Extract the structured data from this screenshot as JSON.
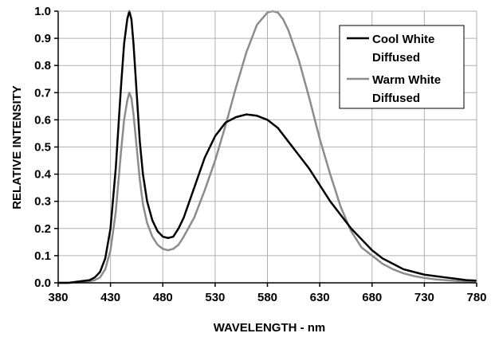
{
  "chart_data": {
    "type": "line",
    "title": "",
    "xlabel": "WAVELENGTH - nm",
    "ylabel": "RELATIVE INTENSITY",
    "xlim": [
      380,
      780
    ],
    "ylim": [
      0,
      1.0
    ],
    "x_ticks": [
      "380",
      "430",
      "480",
      "530",
      "580",
      "630",
      "680",
      "730",
      "780"
    ],
    "y_ticks": [
      "0.0",
      "0.1",
      "0.2",
      "0.3",
      "0.4",
      "0.5",
      "0.6",
      "0.7",
      "0.8",
      "0.9",
      "1.0"
    ],
    "grid": true,
    "legend_position": "top-right",
    "series": [
      {
        "name": "Cool White Diffused",
        "color": "#000000",
        "x": [
          380,
          390,
          400,
          410,
          415,
          420,
          425,
          430,
          435,
          440,
          443,
          446,
          448,
          450,
          452,
          455,
          458,
          461,
          465,
          470,
          475,
          480,
          485,
          490,
          495,
          500,
          510,
          520,
          530,
          540,
          550,
          560,
          570,
          580,
          590,
          600,
          610,
          620,
          630,
          640,
          650,
          660,
          670,
          680,
          690,
          700,
          710,
          720,
          730,
          740,
          750,
          760,
          770,
          780
        ],
        "y": [
          0.0,
          0.0,
          0.005,
          0.01,
          0.02,
          0.04,
          0.09,
          0.2,
          0.42,
          0.72,
          0.88,
          0.97,
          1.0,
          0.97,
          0.88,
          0.7,
          0.52,
          0.4,
          0.3,
          0.23,
          0.19,
          0.17,
          0.165,
          0.17,
          0.2,
          0.24,
          0.35,
          0.46,
          0.54,
          0.59,
          0.61,
          0.62,
          0.615,
          0.6,
          0.57,
          0.52,
          0.47,
          0.42,
          0.36,
          0.3,
          0.25,
          0.2,
          0.16,
          0.12,
          0.09,
          0.07,
          0.05,
          0.04,
          0.03,
          0.025,
          0.02,
          0.015,
          0.01,
          0.008
        ]
      },
      {
        "name": "Warm White Diffused",
        "color": "#8c8c8c",
        "x": [
          380,
          390,
          400,
          410,
          415,
          420,
          425,
          430,
          435,
          440,
          443,
          446,
          448,
          450,
          452,
          455,
          458,
          461,
          465,
          470,
          475,
          480,
          485,
          490,
          495,
          500,
          510,
          520,
          530,
          540,
          550,
          560,
          570,
          580,
          585,
          590,
          595,
          600,
          610,
          620,
          630,
          640,
          650,
          660,
          670,
          680,
          690,
          700,
          710,
          720,
          730,
          740,
          750,
          760,
          770,
          780
        ],
        "y": [
          0.0,
          0.0,
          0.003,
          0.006,
          0.01,
          0.02,
          0.05,
          0.12,
          0.26,
          0.48,
          0.6,
          0.67,
          0.7,
          0.68,
          0.62,
          0.5,
          0.38,
          0.29,
          0.22,
          0.17,
          0.14,
          0.125,
          0.12,
          0.125,
          0.14,
          0.17,
          0.24,
          0.34,
          0.45,
          0.58,
          0.72,
          0.85,
          0.95,
          0.995,
          1.0,
          0.995,
          0.97,
          0.93,
          0.82,
          0.68,
          0.53,
          0.4,
          0.28,
          0.19,
          0.13,
          0.1,
          0.07,
          0.05,
          0.035,
          0.025,
          0.018,
          0.013,
          0.01,
          0.007,
          0.005,
          0.003
        ]
      }
    ]
  }
}
